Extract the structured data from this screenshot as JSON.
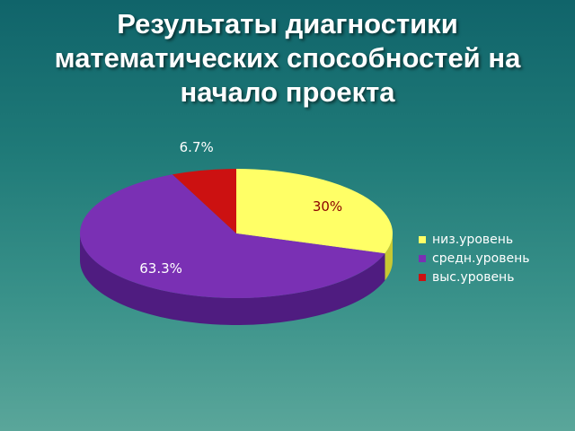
{
  "title_lines": [
    "Результаты диагностики",
    "математических способностей на",
    "начало проекта"
  ],
  "chart_data": {
    "type": "pie",
    "series": [
      {
        "label": "низ.уровень",
        "value": 30,
        "display": "30%",
        "color": "#ffff66",
        "side": "#c8c832",
        "label_color": "#8b0000"
      },
      {
        "label": "средн.уровень",
        "value": 63.3,
        "display": "63.3%",
        "color": "#7a30b4",
        "side": "#4f1c80",
        "label_color": "#ffffff"
      },
      {
        "label": "выс.уровень",
        "value": 6.7,
        "display": "6.7%",
        "color": "#cc1111",
        "side": "#880808",
        "label_color": "#ffffff"
      }
    ],
    "legend_position": "right"
  }
}
